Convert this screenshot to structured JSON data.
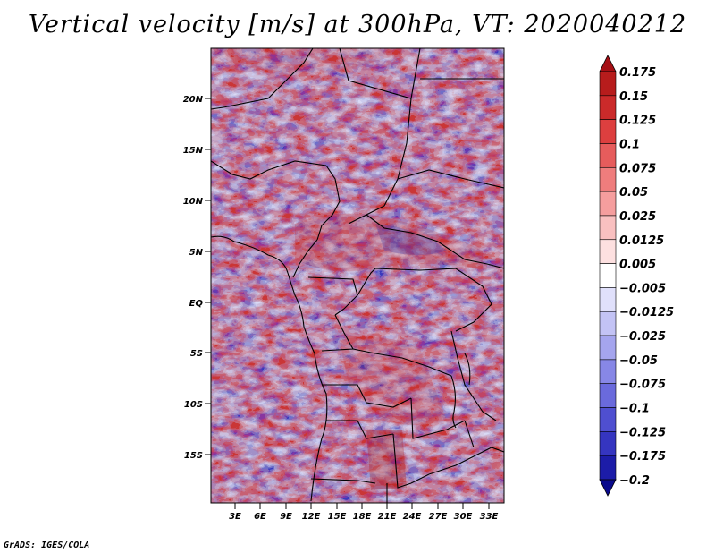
{
  "title": "Vertical velocity [m/s] at 300hPa, VT: 2020040212",
  "credit": "GrADS: IGES/COLA",
  "axes": {
    "lat_labels": [
      "20N",
      "15N",
      "10N",
      "5N",
      "EQ",
      "5S",
      "10S",
      "15S"
    ],
    "lon_labels": [
      "3E",
      "6E",
      "9E",
      "12E",
      "15E",
      "18E",
      "21E",
      "24E",
      "27E",
      "30E",
      "33E"
    ]
  },
  "colorbar": {
    "labels": [
      "0.175",
      "0.15",
      "0.125",
      "0.1",
      "0.075",
      "0.05",
      "0.025",
      "0.0125",
      "0.005",
      "−0.005",
      "−0.0125",
      "−0.025",
      "−0.05",
      "−0.075",
      "−0.1",
      "−0.125",
      "−0.175",
      "−0.2"
    ],
    "colors": [
      "#a50f15",
      "#b71c1c",
      "#cb2a2a",
      "#dd3f3f",
      "#e65c5c",
      "#ef7d7d",
      "#f59e9e",
      "#f9c0c0",
      "#fde0e0",
      "#ffffff",
      "#e0e0fb",
      "#c3c3f5",
      "#a5a5ee",
      "#8787e6",
      "#6a6adc",
      "#4f4fd0",
      "#3535c0",
      "#1c1ca8",
      "#0a0a8c"
    ]
  }
}
